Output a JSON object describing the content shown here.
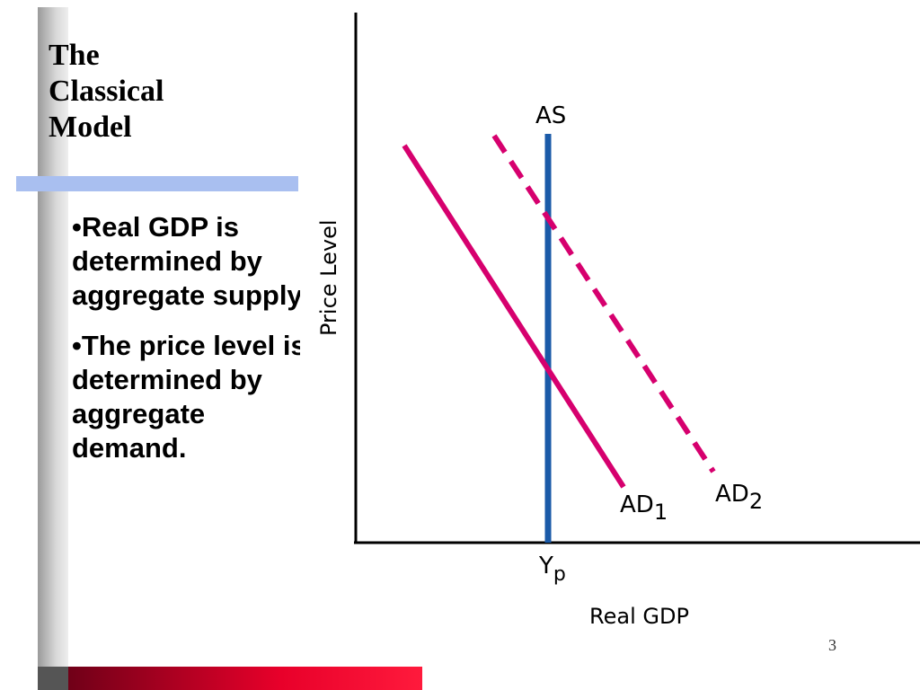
{
  "slide": {
    "title_lines": [
      "The",
      "Classical",
      "Model"
    ],
    "bullets": [
      "•Real GDP is determined by aggregate supply",
      "•The price level is determined by aggregate demand."
    ],
    "page_number": "3"
  },
  "diagram": {
    "y_axis_label": "Price Level",
    "x_axis_label": "Real GDP",
    "as_label": "AS",
    "yp_label": {
      "main": "Y",
      "sub": "p"
    },
    "ad1_label": {
      "main": "AD",
      "sub": "1"
    },
    "ad2_label": {
      "main": "AD",
      "sub": "2"
    },
    "colors": {
      "as_line": "#1a5aa8",
      "ad_line": "#d6006e",
      "axis": "#000000"
    }
  }
}
